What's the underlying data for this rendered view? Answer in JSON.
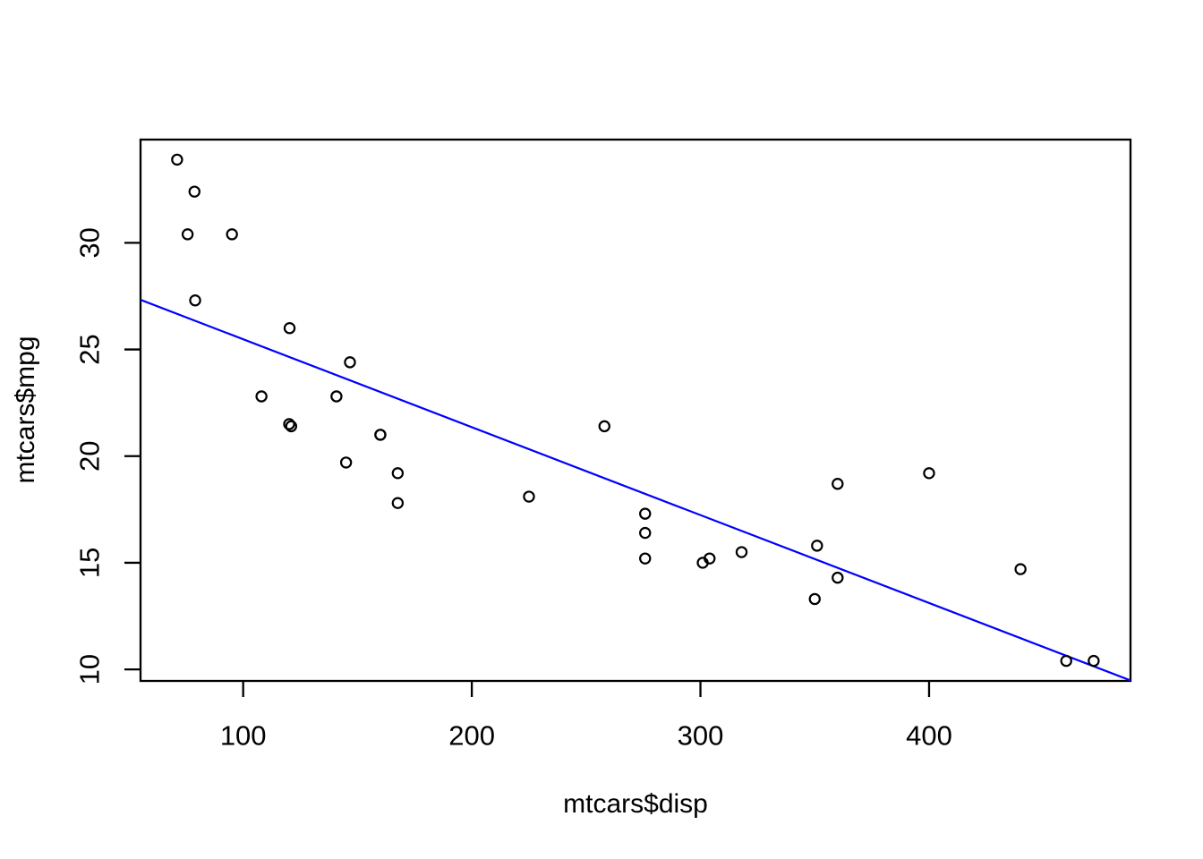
{
  "figure": {
    "background": "#ffffff",
    "foreground": "#000000"
  },
  "chart_data": {
    "type": "scatter",
    "title": "",
    "xlabel": "mtcars$disp",
    "ylabel": "mtcars$mpg",
    "x": [
      160,
      160,
      108,
      258,
      360,
      225,
      360,
      146.7,
      140.8,
      167.6,
      167.6,
      275.8,
      275.8,
      275.8,
      472,
      460,
      440,
      78.7,
      75.7,
      71.1,
      120.1,
      318,
      304,
      350,
      400,
      79,
      120.3,
      95.1,
      351,
      145,
      301,
      121
    ],
    "y": [
      21,
      21,
      22.8,
      21.4,
      18.7,
      18.1,
      14.3,
      24.4,
      22.8,
      19.2,
      17.8,
      16.4,
      17.3,
      15.2,
      10.4,
      10.4,
      14.7,
      32.4,
      30.4,
      33.9,
      21.5,
      15.5,
      15.2,
      13.3,
      19.2,
      27.3,
      26,
      30.4,
      15.8,
      19.7,
      15,
      21.4
    ],
    "x_ticks": [
      100,
      200,
      300,
      400
    ],
    "y_ticks": [
      10,
      15,
      20,
      25,
      30
    ],
    "xlim": [
      55.1,
      488.1
    ],
    "ylim": [
      9.46,
      34.84
    ],
    "grid": false,
    "legend": null,
    "point_style": {
      "shape": "open-circle",
      "color": "#000000"
    },
    "fit_line": {
      "type": "linear-regression",
      "intercept": 29.59985,
      "slope": -0.041215,
      "color": "#0000ff"
    }
  }
}
